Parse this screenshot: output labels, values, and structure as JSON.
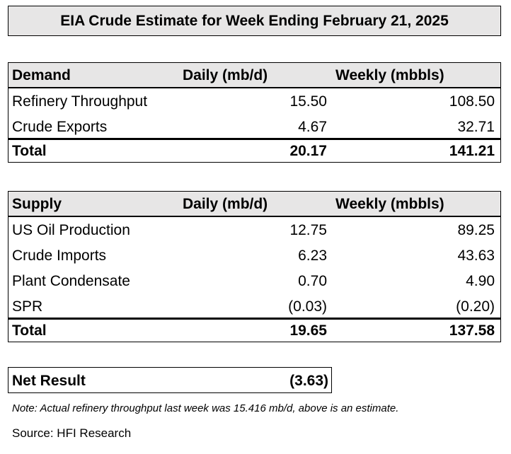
{
  "title": "EIA Crude Estimate for Week Ending February 21, 2025",
  "demand": {
    "header": [
      "Demand",
      "Daily (mb/d)",
      "Weekly (mbbls)"
    ],
    "rows": [
      [
        "Refinery Throughput",
        "15.50",
        "108.50"
      ],
      [
        "Crude Exports",
        "4.67",
        "32.71"
      ]
    ],
    "total": [
      "Total",
      "20.17",
      "141.21"
    ]
  },
  "supply": {
    "header": [
      "Supply",
      "Daily (mb/d)",
      "Weekly (mbbls)"
    ],
    "rows": [
      [
        "US Oil Production",
        "12.75",
        "89.25"
      ],
      [
        "Crude Imports",
        "6.23",
        "43.63"
      ],
      [
        "Plant Condensate",
        "0.70",
        "4.90"
      ],
      [
        "SPR",
        "(0.03)",
        "(0.20)"
      ]
    ],
    "total": [
      "Total",
      "19.65",
      "137.58"
    ]
  },
  "net_result": {
    "label": "Net Result",
    "value": "(3.63)"
  },
  "note": "Note: Actual refinery throughput last week was 15.416 mb/d, above is an estimate.",
  "source": "Source: HFI Research"
}
